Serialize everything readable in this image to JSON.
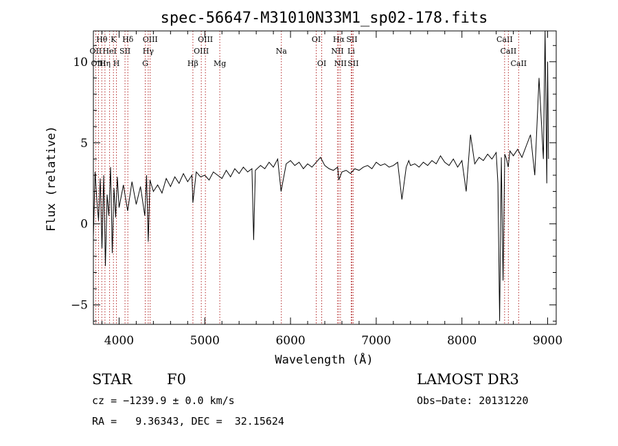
{
  "chart_data": {
    "type": "line",
    "title": "spec-56647-M31010N33M1_sp02-178.fits",
    "xlabel": "Wavelength (Å)",
    "ylabel": "Flux (relative)",
    "xlim": [
      3700,
      9100
    ],
    "ylim": [
      -6.2,
      11.9
    ],
    "x_ticks": [
      4000,
      5000,
      6000,
      7000,
      8000,
      9000
    ],
    "x_tick_labels": [
      "4000",
      "5000",
      "6000",
      "7000",
      "8000",
      "9000"
    ],
    "y_ticks": [
      -5,
      0,
      5,
      10
    ],
    "y_tick_labels": [
      "−5",
      "0",
      "5",
      "10"
    ],
    "y_tick_10_label": "10",
    "line_color": "#000000",
    "marker_color": "#b22222",
    "series": [
      {
        "name": "flux",
        "x": [
          3700,
          3720,
          3740,
          3760,
          3780,
          3800,
          3820,
          3840,
          3860,
          3880,
          3900,
          3920,
          3940,
          3960,
          3980,
          4000,
          4050,
          4100,
          4150,
          4200,
          4250,
          4300,
          4320,
          4340,
          4360,
          4400,
          4450,
          4500,
          4550,
          4600,
          4650,
          4700,
          4750,
          4800,
          4850,
          4861,
          4900,
          4950,
          5000,
          5050,
          5100,
          5150,
          5200,
          5250,
          5300,
          5350,
          5400,
          5450,
          5500,
          5550,
          5570,
          5590,
          5650,
          5700,
          5750,
          5800,
          5850,
          5890,
          5950,
          6000,
          6050,
          6100,
          6150,
          6200,
          6250,
          6300,
          6350,
          6400,
          6450,
          6500,
          6550,
          6563,
          6600,
          6650,
          6700,
          6750,
          6800,
          6850,
          6900,
          6950,
          7000,
          7050,
          7100,
          7150,
          7200,
          7250,
          7300,
          7350,
          7380,
          7400,
          7450,
          7500,
          7550,
          7600,
          7650,
          7700,
          7750,
          7800,
          7850,
          7900,
          7950,
          8000,
          8050,
          8100,
          8150,
          8200,
          8250,
          8300,
          8350,
          8400,
          8420,
          8440,
          8460,
          8480,
          8500,
          8520,
          8540,
          8560,
          8600,
          8650,
          8700,
          8750,
          8800,
          8850,
          8900,
          8950,
          8970,
          8990,
          9000,
          9010
        ],
        "y": [
          -0.8,
          3.2,
          1.5,
          0.2,
          2.8,
          -1.5,
          3.0,
          -2.6,
          1.8,
          0.5,
          3.5,
          -1.8,
          2.2,
          0.4,
          2.9,
          1.0,
          2.4,
          0.8,
          2.6,
          1.2,
          2.3,
          0.5,
          3.0,
          -1.1,
          2.7,
          2.0,
          2.4,
          1.9,
          2.8,
          2.3,
          2.9,
          2.5,
          3.1,
          2.6,
          3.0,
          1.3,
          3.2,
          2.9,
          3.0,
          2.7,
          3.2,
          3.0,
          2.8,
          3.3,
          2.9,
          3.4,
          3.1,
          3.5,
          3.2,
          3.4,
          -1.0,
          3.3,
          3.6,
          3.4,
          3.8,
          3.5,
          4.0,
          2.0,
          3.7,
          3.9,
          3.6,
          3.8,
          3.4,
          3.7,
          3.5,
          3.8,
          4.1,
          3.6,
          3.4,
          3.3,
          3.5,
          2.7,
          3.2,
          3.3,
          3.1,
          3.4,
          3.3,
          3.5,
          3.6,
          3.4,
          3.8,
          3.6,
          3.7,
          3.5,
          3.6,
          3.8,
          1.5,
          3.5,
          3.9,
          3.6,
          3.7,
          3.5,
          3.8,
          3.6,
          3.9,
          3.7,
          4.2,
          3.8,
          3.6,
          4.0,
          3.5,
          3.9,
          2.0,
          5.5,
          3.7,
          4.1,
          3.9,
          4.3,
          4.0,
          4.4,
          2.5,
          -6.0,
          4.1,
          -3.5,
          4.3,
          4.0,
          3.5,
          4.5,
          4.2,
          4.6,
          4.1,
          4.8,
          5.5,
          3.0,
          9.0,
          4.0,
          11.9,
          2.5,
          10.0,
          4.0
        ]
      }
    ],
    "line_markers": [
      {
        "label": "Hθ",
        "x": 3798,
        "row": 1
      },
      {
        "label": "OII",
        "x": 3727,
        "row": 2
      },
      {
        "label": "OIII",
        "x": 3760,
        "row": 3
      },
      {
        "label": "K",
        "x": 3934,
        "row": 1
      },
      {
        "label": "HeI",
        "x": 3889,
        "row": 2
      },
      {
        "label": "Hη",
        "x": 3835,
        "row": 3
      },
      {
        "label": "SII",
        "x": 4069,
        "row": 2
      },
      {
        "label": "H",
        "x": 3969,
        "row": 3
      },
      {
        "label": "Hδ",
        "x": 4102,
        "row": 1
      },
      {
        "label": "OIII",
        "x": 4363,
        "row": 1
      },
      {
        "label": "Hγ",
        "x": 4340,
        "row": 2
      },
      {
        "label": "G",
        "x": 4305,
        "row": 3
      },
      {
        "label": "OIII",
        "x": 5007,
        "row": 1
      },
      {
        "label": "OIII",
        "x": 4959,
        "row": 2
      },
      {
        "label": "Hβ",
        "x": 4861,
        "row": 3
      },
      {
        "label": "Mg",
        "x": 5175,
        "row": 3
      },
      {
        "label": "Na",
        "x": 5893,
        "row": 2
      },
      {
        "label": "OI",
        "x": 6300,
        "row": 1
      },
      {
        "label": "OI",
        "x": 6364,
        "row": 3
      },
      {
        "label": "Hα",
        "x": 6563,
        "row": 1
      },
      {
        "label": "SII",
        "x": 6716,
        "row": 1
      },
      {
        "label": "NII",
        "x": 6548,
        "row": 2
      },
      {
        "label": "Li",
        "x": 6708,
        "row": 2
      },
      {
        "label": "NII",
        "x": 6583,
        "row": 3
      },
      {
        "label": "SII",
        "x": 6731,
        "row": 3
      },
      {
        "label": "CaII",
        "x": 8498,
        "row": 1
      },
      {
        "label": "CaII",
        "x": 8542,
        "row": 2
      },
      {
        "label": "CaII",
        "x": 8662,
        "row": 3
      }
    ]
  },
  "info": {
    "class_label": "STAR",
    "subclass": "F0",
    "survey": "LAMOST DR3",
    "cz": "cz = −1239.9 ± 0.0 km/s",
    "obs_date": "Obs−Date: 20131220",
    "radec": "RA =   9.36343, DEC =  32.15624"
  }
}
